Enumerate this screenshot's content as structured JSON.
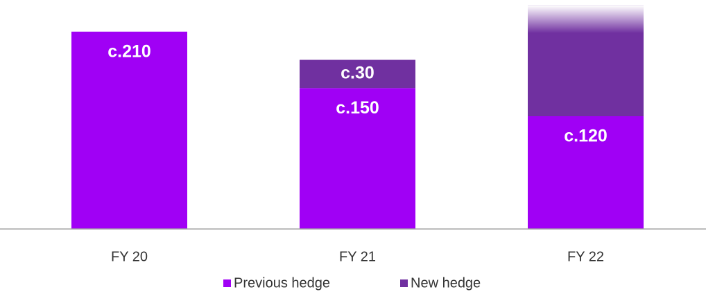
{
  "chart_data": {
    "type": "bar",
    "stacked": true,
    "categories": [
      "FY 20",
      "FY 21",
      "FY 22"
    ],
    "series": [
      {
        "name": "Previous hedge",
        "color": "#a000f5",
        "values": [
          210,
          150,
          120
        ],
        "value_labels": [
          "c.210",
          "c.150",
          "c.120"
        ]
      },
      {
        "name": "New hedge",
        "color": "#7030a0",
        "values": [
          null,
          30,
          118
        ],
        "value_labels": [
          null,
          "c.30",
          null
        ]
      }
    ],
    "ylim": [
      0,
      240
    ],
    "legend": "bottom"
  }
}
